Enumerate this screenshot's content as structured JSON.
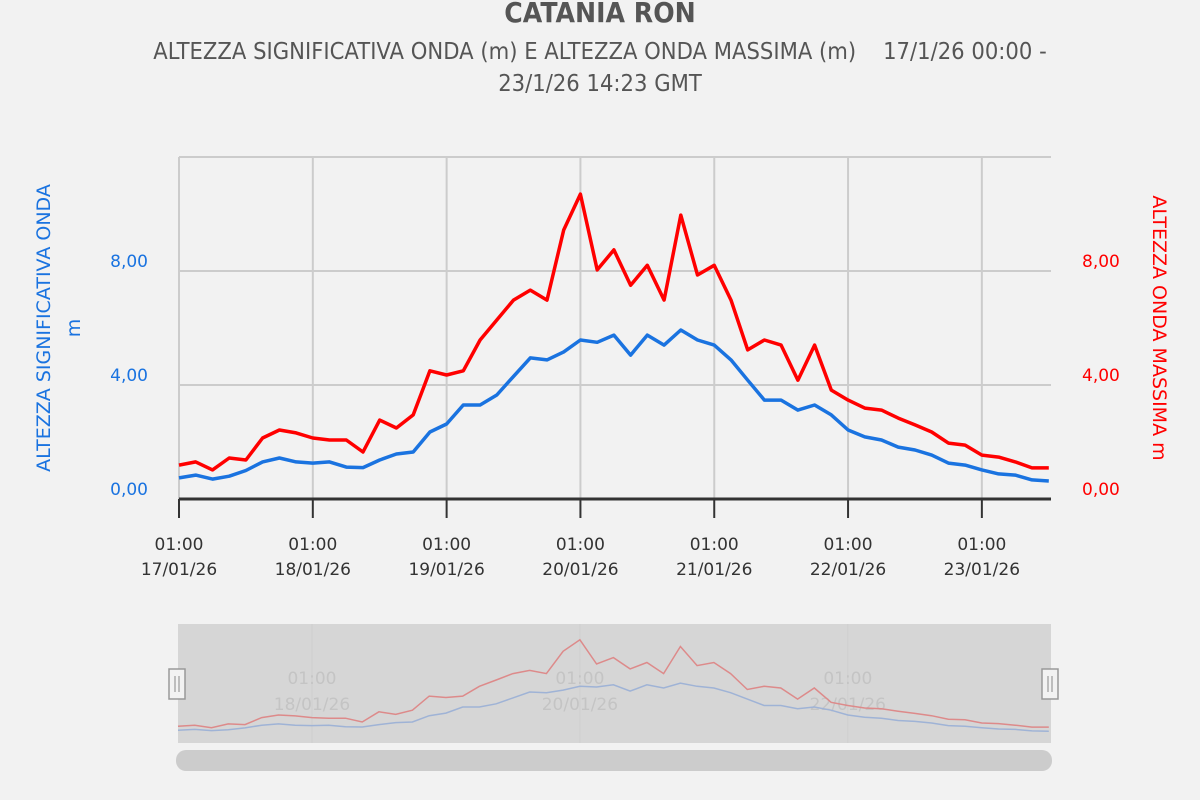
{
  "header": {
    "title": "CATANIA RON",
    "subtitle_line1": "ALTEZZA SIGNIFICATIVA ONDA (m) E ALTEZZA ONDA MASSIMA (m)    17/1/26 00:00 -",
    "subtitle_line2": "23/1/26 14:23 GMT"
  },
  "chart_data": {
    "type": "line",
    "title": "CATANIA RON",
    "x_unit": "hours since 17/01/26 01:00",
    "x_step_hours": 3,
    "xlim": [
      0,
      156.4
    ],
    "ylim": [
      0,
      12
    ],
    "grid": true,
    "y_left": {
      "title_line1": "ALTEZZA SIGNIFICATIVA ONDA",
      "title_line2": "m",
      "ticks": [
        "0,00",
        "4,00",
        "8,00"
      ],
      "tick_values": [
        0,
        4,
        8
      ],
      "color": "#1a73e0"
    },
    "y_right": {
      "title": "ALTEZZA ONDA MASSIMA m",
      "ticks": [
        "0,00",
        "4,00",
        "8,00"
      ],
      "tick_values": [
        0,
        4,
        8
      ],
      "color": "#ff0000"
    },
    "x_ticks": [
      {
        "time": "01:00",
        "date": "17/01/26",
        "hours": 0
      },
      {
        "time": "01:00",
        "date": "18/01/26",
        "hours": 24
      },
      {
        "time": "01:00",
        "date": "19/01/26",
        "hours": 48
      },
      {
        "time": "01:00",
        "date": "20/01/26",
        "hours": 72
      },
      {
        "time": "01:00",
        "date": "21/01/26",
        "hours": 96
      },
      {
        "time": "01:00",
        "date": "22/01/26",
        "hours": 120
      },
      {
        "time": "01:00",
        "date": "23/01/26",
        "hours": 144
      }
    ],
    "series": [
      {
        "name": "ALTEZZA SIGNIFICATIVA ONDA (m)",
        "color": "#1a73e0",
        "values": [
          0.74,
          0.84,
          0.7,
          0.8,
          1.0,
          1.3,
          1.44,
          1.3,
          1.26,
          1.3,
          1.12,
          1.1,
          1.37,
          1.58,
          1.65,
          2.35,
          2.63,
          3.3,
          3.3,
          3.65,
          4.3,
          4.95,
          4.88,
          5.16,
          5.58,
          5.5,
          5.75,
          5.05,
          5.75,
          5.4,
          5.93,
          5.58,
          5.4,
          4.88,
          4.17,
          3.47,
          3.47,
          3.12,
          3.3,
          2.95,
          2.42,
          2.18,
          2.07,
          1.82,
          1.72,
          1.54,
          1.26,
          1.19,
          1.02,
          0.88,
          0.84,
          0.67,
          0.63
        ]
      },
      {
        "name": "ALTEZZA ONDA MASSIMA (m)",
        "color": "#ff0000",
        "values": [
          1.19,
          1.3,
          1.02,
          1.44,
          1.37,
          2.14,
          2.42,
          2.32,
          2.14,
          2.07,
          2.07,
          1.65,
          2.77,
          2.49,
          2.95,
          4.5,
          4.35,
          4.5,
          5.58,
          6.28,
          6.98,
          7.33,
          6.98,
          9.44,
          10.7,
          8.04,
          8.74,
          7.5,
          8.2,
          6.98,
          9.96,
          7.86,
          8.2,
          6.98,
          5.23,
          5.58,
          5.4,
          4.17,
          5.4,
          3.82,
          3.47,
          3.19,
          3.12,
          2.84,
          2.6,
          2.35,
          1.96,
          1.89,
          1.54,
          1.47,
          1.3,
          1.09,
          1.09
        ]
      }
    ],
    "navigator": {
      "labels": [
        {
          "time": "01:00",
          "date": "18/01/26",
          "hours": 24
        },
        {
          "time": "01:00",
          "date": "20/01/26",
          "hours": 72
        },
        {
          "time": "01:00",
          "date": "22/01/26",
          "hours": 120
        }
      ],
      "selected_range_fraction": [
        0,
        1
      ]
    }
  }
}
